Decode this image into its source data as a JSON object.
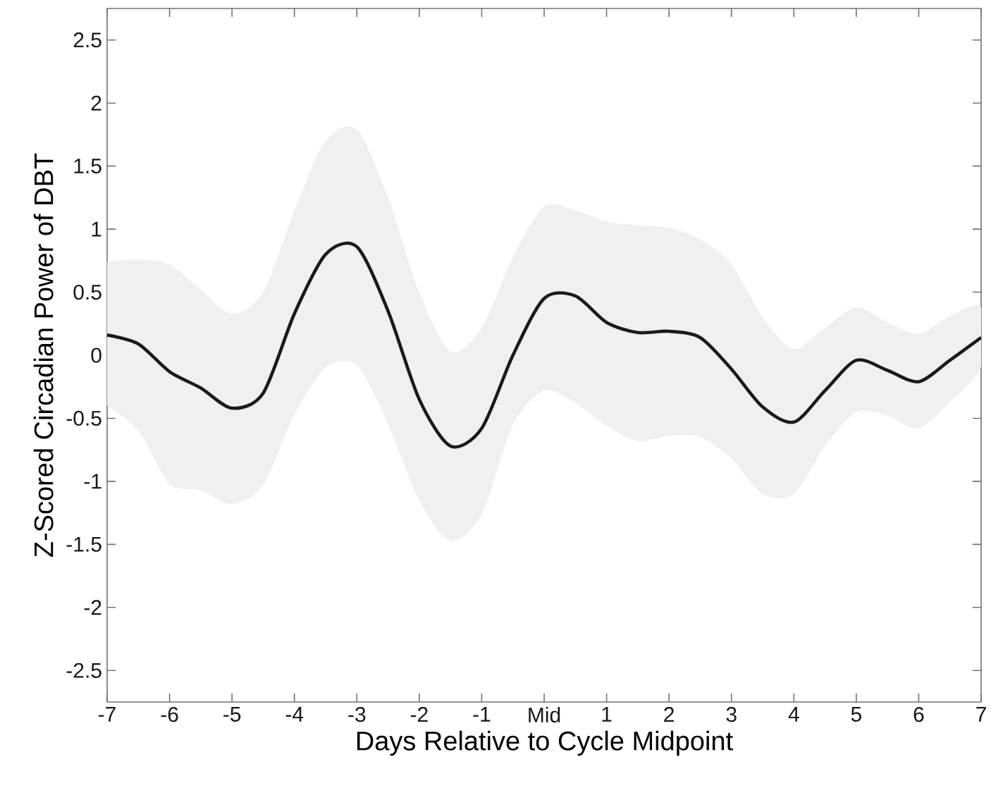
{
  "chart_data": {
    "type": "line",
    "xlabel": "Days Relative to Cycle Midpoint",
    "ylabel": "Z-Scored Circadian Power of DBT",
    "xlim": [
      -7,
      7
    ],
    "ylim": [
      -2.75,
      2.75
    ],
    "xticks": [
      -7,
      -6,
      -5,
      -4,
      -3,
      -2,
      -1,
      {
        "value": 0,
        "label": "Mid"
      },
      1,
      2,
      3,
      4,
      5,
      6,
      7
    ],
    "yticks": [
      -2.5,
      -2,
      -1.5,
      -1,
      -0.5,
      0,
      0.5,
      1,
      1.5,
      2,
      2.5
    ],
    "series": [
      {
        "color": "#1a1a1a",
        "x": [
          -7,
          -6.5,
          -6,
          -5.5,
          -5,
          -4.5,
          -4,
          -3.5,
          -3,
          -2.5,
          -2,
          -1.5,
          -1,
          -0.5,
          0,
          0.5,
          1,
          1.5,
          2,
          2.5,
          3,
          3.5,
          4,
          4.5,
          5,
          5.5,
          6,
          6.5,
          7
        ],
        "values": [
          0.16,
          0.09,
          -0.13,
          -0.26,
          -0.42,
          -0.3,
          0.33,
          0.8,
          0.86,
          0.35,
          -0.35,
          -0.72,
          -0.58,
          0.0,
          0.45,
          0.47,
          0.26,
          0.18,
          0.19,
          0.14,
          -0.11,
          -0.41,
          -0.53,
          -0.28,
          -0.04,
          -0.12,
          -0.21,
          -0.04,
          0.14
        ],
        "lower": [
          -0.4,
          -0.6,
          -1.02,
          -1.07,
          -1.18,
          -1.03,
          -0.47,
          -0.1,
          -0.08,
          -0.55,
          -1.15,
          -1.47,
          -1.26,
          -0.55,
          -0.28,
          -0.38,
          -0.56,
          -0.68,
          -0.64,
          -0.65,
          -0.82,
          -1.1,
          -1.1,
          -0.72,
          -0.45,
          -0.48,
          -0.58,
          -0.37,
          -0.09
        ],
        "upper": [
          0.74,
          0.76,
          0.72,
          0.52,
          0.33,
          0.5,
          1.15,
          1.7,
          1.79,
          1.25,
          0.5,
          0.03,
          0.22,
          0.78,
          1.18,
          1.15,
          1.06,
          1.03,
          1.01,
          0.92,
          0.72,
          0.3,
          0.05,
          0.22,
          0.38,
          0.26,
          0.17,
          0.31,
          0.38
        ]
      }
    ]
  }
}
